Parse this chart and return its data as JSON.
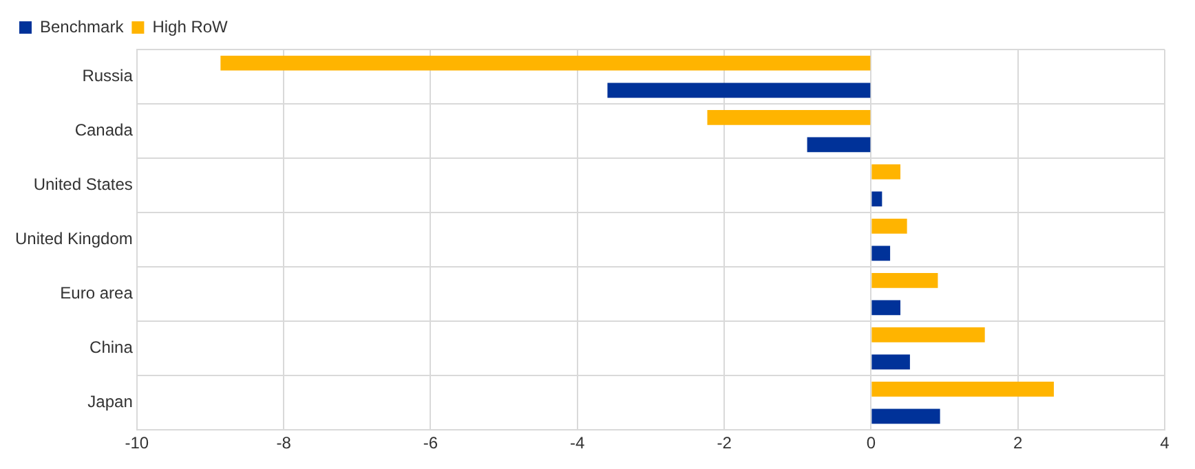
{
  "chart_data": {
    "type": "bar",
    "orientation": "horizontal",
    "categories": [
      "Russia",
      "Canada",
      "United States",
      "United Kingdom",
      "Euro area",
      "China",
      "Japan"
    ],
    "series": [
      {
        "name": "Benchmark",
        "color": "#003299",
        "values": [
          -3.59,
          -0.87,
          0.15,
          0.26,
          0.4,
          0.53,
          0.94
        ]
      },
      {
        "name": "High RoW",
        "color": "#ffb400",
        "values": [
          -8.86,
          -2.23,
          0.4,
          0.49,
          0.91,
          1.55,
          2.49
        ]
      }
    ],
    "xlim": [
      -10,
      4
    ],
    "xticks": [
      -10,
      -8,
      -6,
      -4,
      -2,
      0,
      2,
      4
    ],
    "grid": true,
    "legend": "top left"
  }
}
